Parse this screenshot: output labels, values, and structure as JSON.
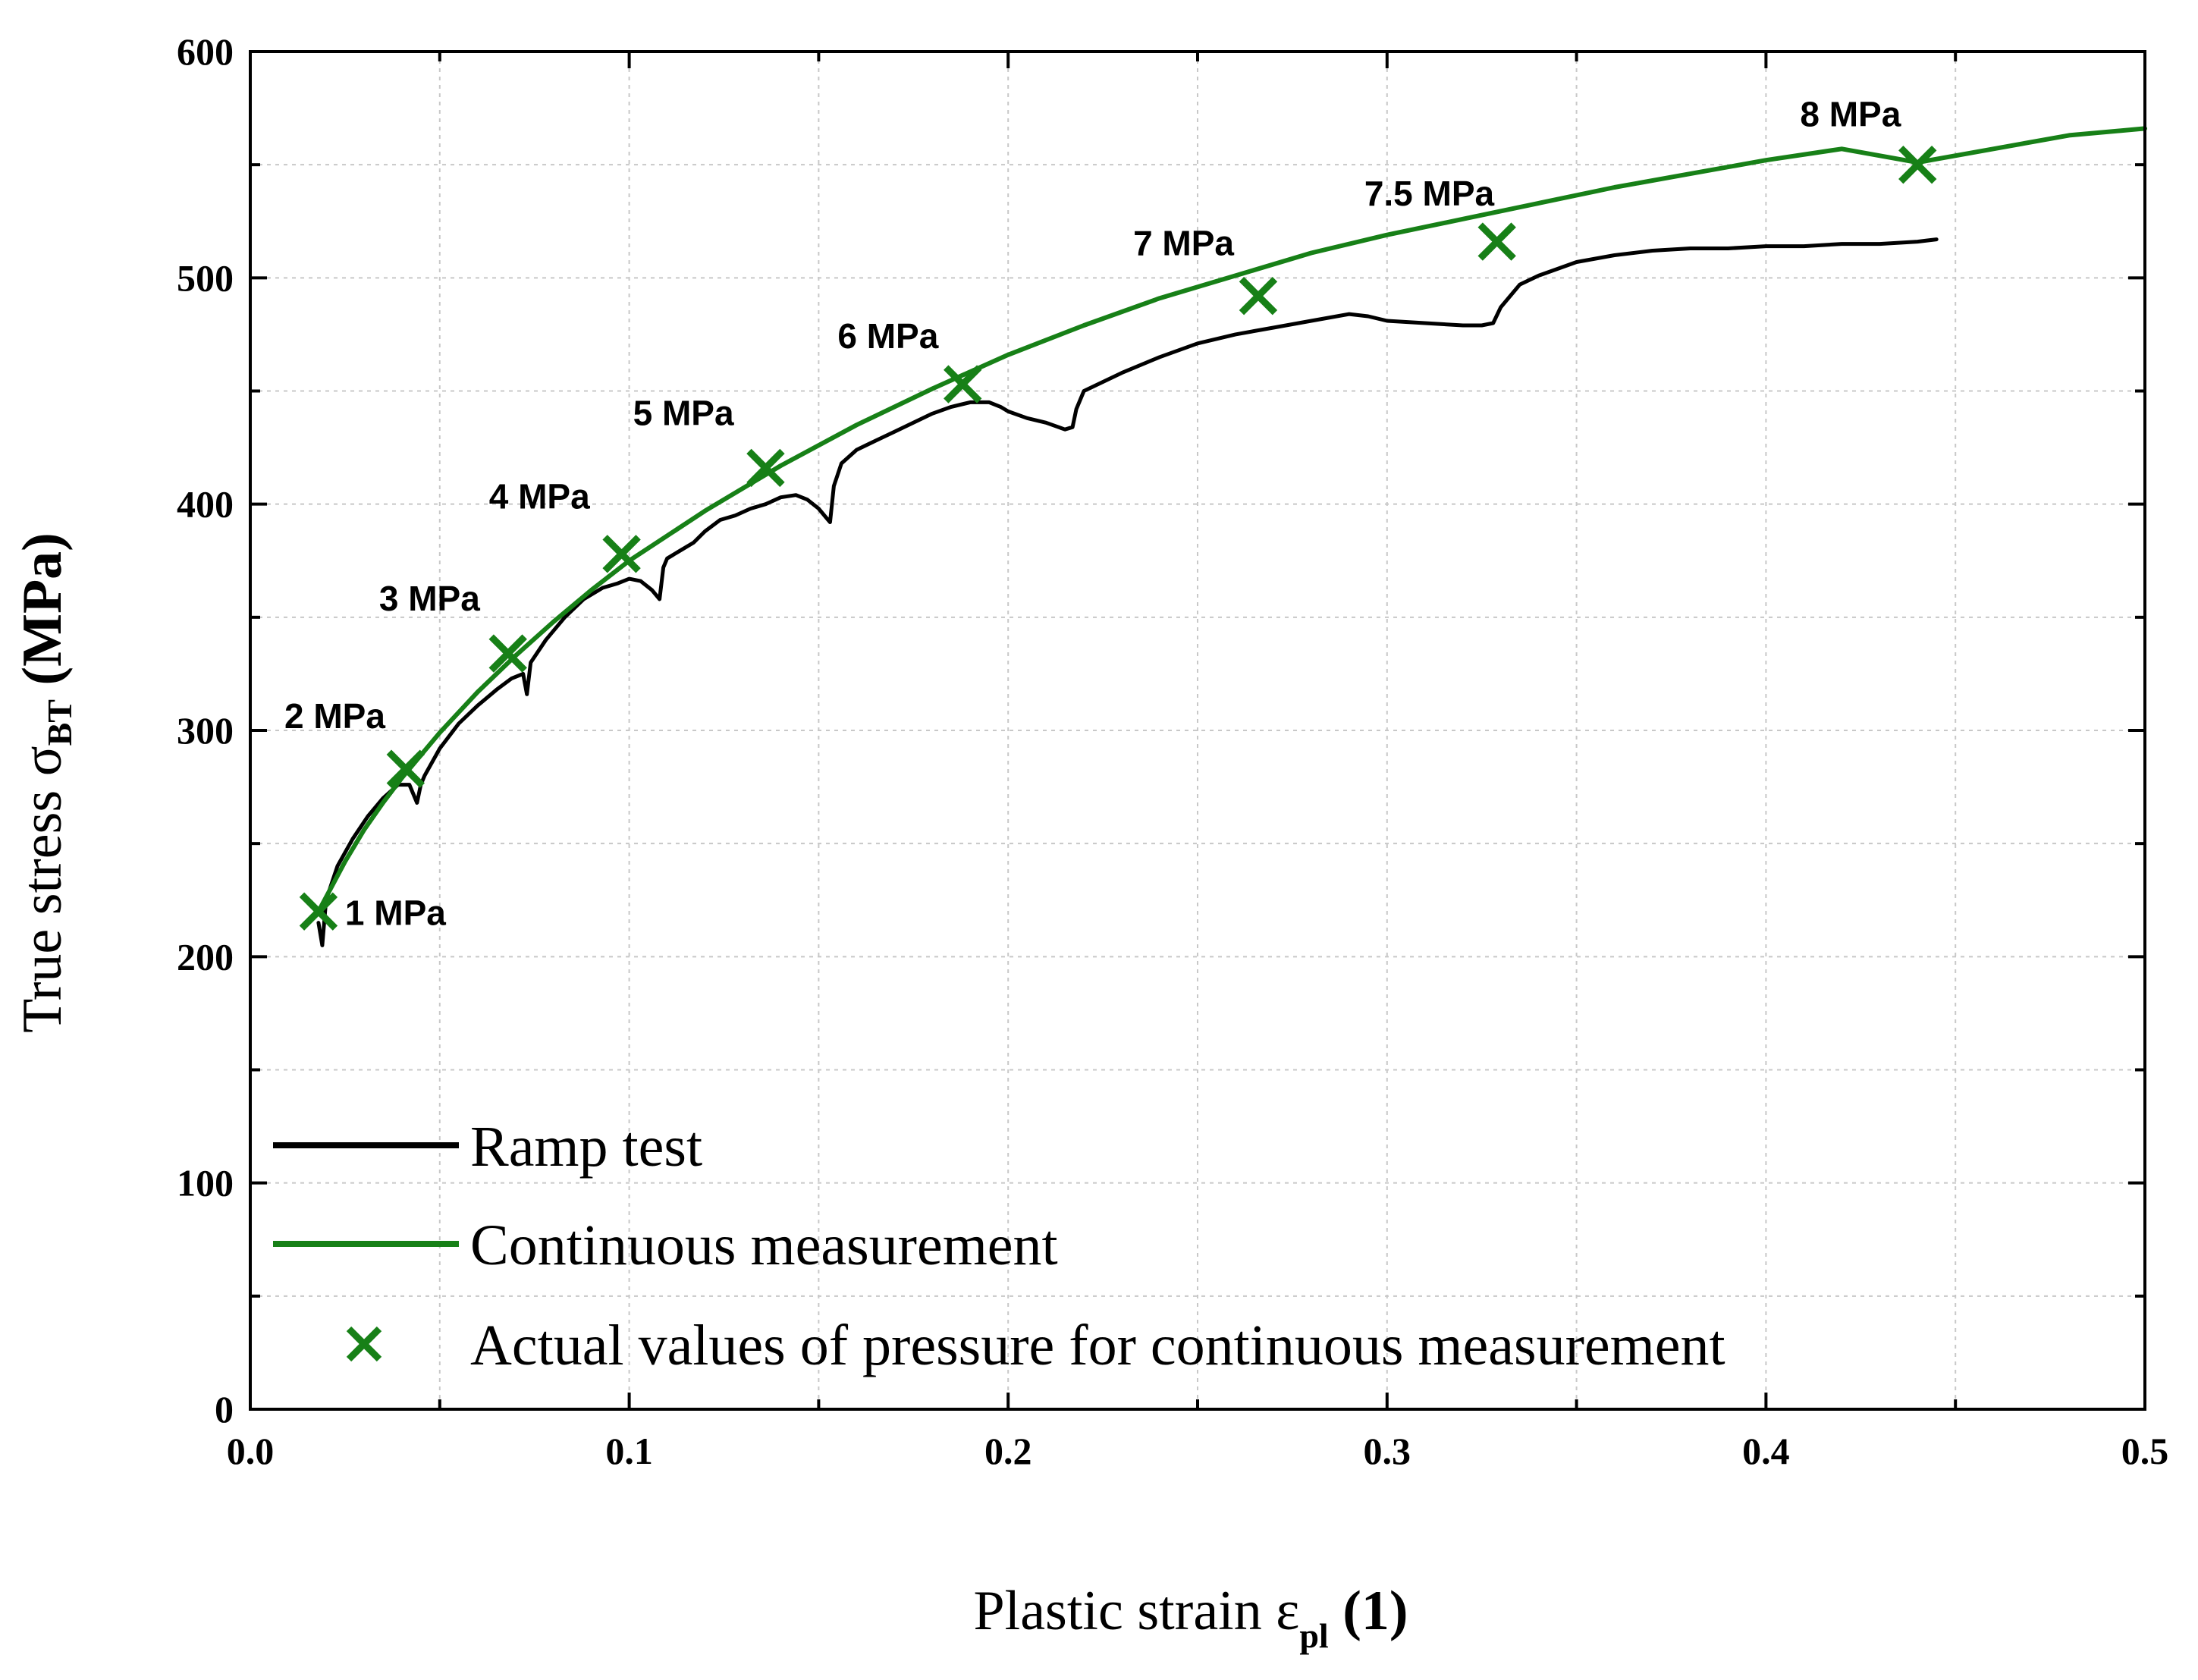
{
  "chart_data": {
    "type": "line",
    "xlim": [
      0.0,
      0.5
    ],
    "ylim": [
      0,
      600
    ],
    "x_ticks": [
      "0.0",
      "0.1",
      "0.2",
      "0.3",
      "0.4",
      "0.5"
    ],
    "y_ticks": [
      "0",
      "100",
      "200",
      "300",
      "400",
      "500",
      "600"
    ],
    "xlabel": {
      "main": "Plastic strain ε",
      "sub": "pl",
      "unit": "(1)"
    },
    "ylabel": {
      "main": "True stress σ",
      "sub": "BT",
      "unit": "(MPa)"
    },
    "grid": true,
    "legend_position": "bottom-left",
    "colors": {
      "ramp": "#000000",
      "continuous": "#178017",
      "markers": "#178017"
    },
    "series": [
      {
        "name": "Ramp test",
        "kind": "line",
        "x": [
          0.018,
          0.019,
          0.02,
          0.023,
          0.027,
          0.031,
          0.035,
          0.039,
          0.042,
          0.044,
          0.045,
          0.046,
          0.05,
          0.055,
          0.06,
          0.065,
          0.069,
          0.072,
          0.073,
          0.074,
          0.078,
          0.083,
          0.088,
          0.093,
          0.097,
          0.1,
          0.103,
          0.106,
          0.108,
          0.109,
          0.11,
          0.113,
          0.117,
          0.12,
          0.124,
          0.128,
          0.132,
          0.136,
          0.14,
          0.144,
          0.147,
          0.15,
          0.152,
          0.153,
          0.154,
          0.156,
          0.16,
          0.165,
          0.17,
          0.175,
          0.18,
          0.185,
          0.19,
          0.195,
          0.198,
          0.2,
          0.205,
          0.21,
          0.215,
          0.217,
          0.218,
          0.22,
          0.23,
          0.24,
          0.25,
          0.26,
          0.27,
          0.28,
          0.29,
          0.295,
          0.3,
          0.31,
          0.32,
          0.325,
          0.328,
          0.33,
          0.335,
          0.34,
          0.35,
          0.36,
          0.37,
          0.38,
          0.39,
          0.4,
          0.41,
          0.42,
          0.43,
          0.44,
          0.445
        ],
        "y": [
          215,
          205,
          225,
          240,
          252,
          262,
          270,
          276,
          276,
          268,
          276,
          280,
          292,
          303,
          311,
          318,
          323,
          325,
          316,
          330,
          340,
          350,
          358,
          363,
          365,
          367,
          366,
          362,
          358,
          372,
          376,
          379,
          383,
          388,
          393,
          395,
          398,
          400,
          403,
          404,
          402,
          398,
          394,
          392,
          408,
          418,
          424,
          428,
          432,
          436,
          440,
          443,
          445,
          445,
          443,
          441,
          438,
          436,
          433,
          434,
          442,
          450,
          458,
          465,
          471,
          475,
          478,
          481,
          484,
          483,
          481,
          480,
          479,
          479,
          480,
          487,
          497,
          501,
          507,
          510,
          512,
          513,
          513,
          514,
          514,
          515,
          515,
          516,
          517
        ]
      },
      {
        "name": "Continuous measurement",
        "kind": "line",
        "x": [
          0.018,
          0.025,
          0.03,
          0.035,
          0.04,
          0.045,
          0.05,
          0.06,
          0.07,
          0.08,
          0.09,
          0.1,
          0.12,
          0.14,
          0.16,
          0.18,
          0.2,
          0.22,
          0.24,
          0.26,
          0.28,
          0.3,
          0.32,
          0.34,
          0.36,
          0.38,
          0.4,
          0.42,
          0.44,
          0.46,
          0.48,
          0.5
        ],
        "y": [
          220,
          242,
          256,
          268,
          279,
          289,
          299,
          317,
          333,
          348,
          362,
          375,
          397,
          417,
          435,
          451,
          466,
          479,
          491,
          501,
          511,
          519,
          526,
          533,
          540,
          546,
          552,
          557,
          551,
          557,
          563,
          566
        ]
      },
      {
        "name": "Actual values of pressure for continuous measurement",
        "kind": "scatter",
        "x": [
          0.018,
          0.041,
          0.068,
          0.098,
          0.136,
          0.188,
          0.266,
          0.329,
          0.44
        ],
        "y": [
          220,
          283,
          334,
          378,
          416,
          453,
          492,
          516,
          550
        ]
      }
    ],
    "annotations": [
      {
        "text": "1 MPa",
        "x": 0.025,
        "y": 214
      },
      {
        "text": "2 MPa",
        "x": 0.009,
        "y": 301
      },
      {
        "text": "3 MPa",
        "x": 0.034,
        "y": 353
      },
      {
        "text": "4 MPa",
        "x": 0.063,
        "y": 398
      },
      {
        "text": "5 MPa",
        "x": 0.101,
        "y": 435
      },
      {
        "text": "6 MPa",
        "x": 0.155,
        "y": 469
      },
      {
        "text": "7 MPa",
        "x": 0.233,
        "y": 510
      },
      {
        "text": "7.5 MPa",
        "x": 0.294,
        "y": 532
      },
      {
        "text": "8 MPa",
        "x": 0.409,
        "y": 567
      }
    ]
  },
  "legend": [
    {
      "label": "Ramp test",
      "kind": "line",
      "color": "#000000"
    },
    {
      "label": "Continuous measurement",
      "kind": "line",
      "color": "#178017"
    },
    {
      "label": "Actual values of pressure for continuous measurement",
      "kind": "marker",
      "color": "#178017"
    }
  ]
}
